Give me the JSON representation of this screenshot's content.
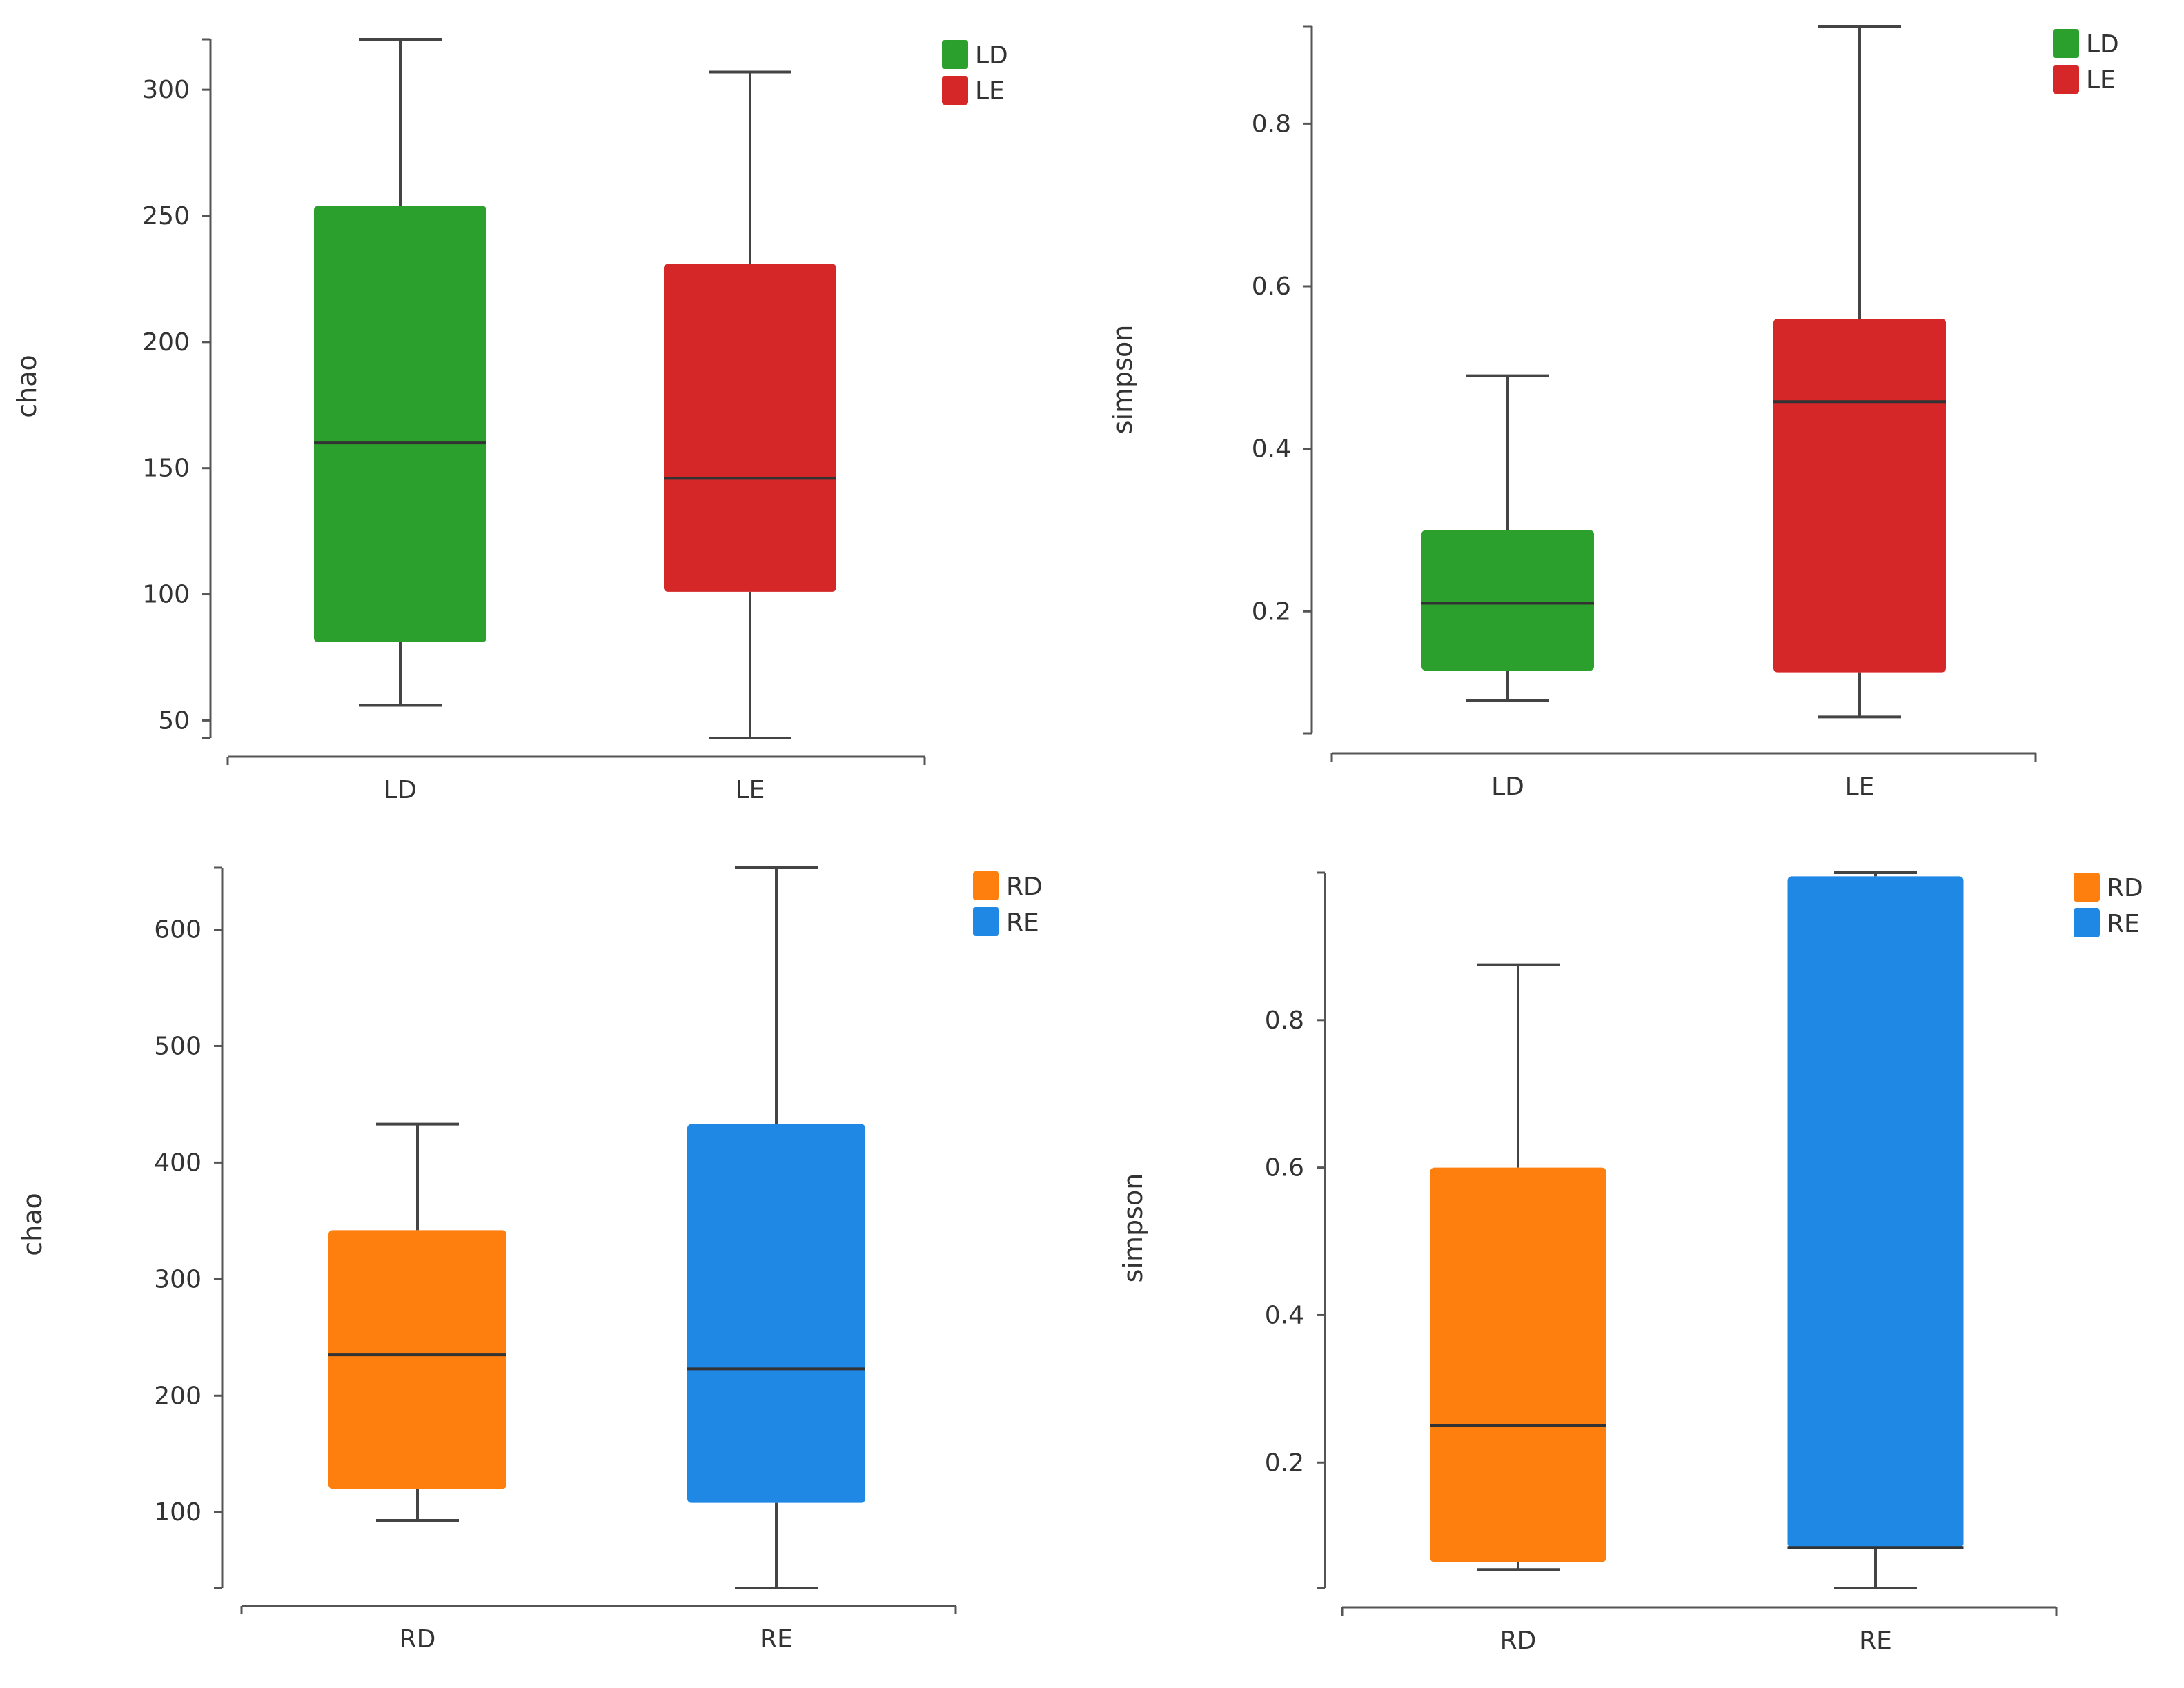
{
  "chart_data": [
    {
      "type": "box",
      "ylabel": "chao",
      "xlabel": "",
      "ylim": [
        43,
        320
      ],
      "yticks": [
        50,
        100,
        150,
        200,
        250,
        300
      ],
      "categories": [
        "LD",
        "LE"
      ],
      "legend": {
        "position": "top-right",
        "entries": [
          "LD",
          "LE"
        ]
      },
      "colors": [
        "#2ca02c",
        "#d62728"
      ],
      "boxes": [
        {
          "name": "LD",
          "min": 56,
          "q1": 81,
          "median": 160,
          "q3": 254,
          "max": 320
        },
        {
          "name": "LE",
          "min": 43,
          "q1": 101,
          "median": 146,
          "q3": 231,
          "max": 307
        }
      ]
    },
    {
      "type": "box",
      "ylabel": "simpson",
      "xlabel": "",
      "ylim": [
        0.05,
        0.92
      ],
      "yticks": [
        0.2,
        0.4,
        0.6,
        0.8
      ],
      "categories": [
        "LD",
        "LE"
      ],
      "legend": {
        "position": "top-right",
        "entries": [
          "LD",
          "LE"
        ]
      },
      "colors": [
        "#2ca02c",
        "#d62728"
      ],
      "boxes": [
        {
          "name": "LD",
          "min": 0.09,
          "q1": 0.127,
          "median": 0.21,
          "q3": 0.3,
          "max": 0.49
        },
        {
          "name": "LE",
          "min": 0.07,
          "q1": 0.125,
          "median": 0.458,
          "q3": 0.56,
          "max": 0.92
        }
      ]
    },
    {
      "type": "box",
      "ylabel": "chao",
      "xlabel": "",
      "ylim": [
        35,
        653
      ],
      "yticks": [
        100,
        200,
        300,
        400,
        500,
        600
      ],
      "categories": [
        "RD",
        "RE"
      ],
      "legend": {
        "position": "top-right",
        "entries": [
          "RD",
          "RE"
        ]
      },
      "colors": [
        "#ff7f0e",
        "#1f88e5"
      ],
      "boxes": [
        {
          "name": "RD",
          "min": 93,
          "q1": 120,
          "median": 235,
          "q3": 342,
          "max": 433
        },
        {
          "name": "RE",
          "min": 35,
          "q1": 108,
          "median": 223,
          "q3": 433,
          "max": 653
        }
      ]
    },
    {
      "type": "box",
      "ylabel": "simpson",
      "xlabel": "",
      "ylim": [
        0.03,
        1.0
      ],
      "yticks": [
        0.2,
        0.4,
        0.6,
        0.8
      ],
      "categories": [
        "RD",
        "RE"
      ],
      "legend": {
        "position": "top-right",
        "entries": [
          "RD",
          "RE"
        ]
      },
      "colors": [
        "#ff7f0e",
        "#1f88e5"
      ],
      "boxes": [
        {
          "name": "RD",
          "min": 0.055,
          "q1": 0.065,
          "median": 0.25,
          "q3": 0.6,
          "max": 0.875
        },
        {
          "name": "RE",
          "min": 0.03,
          "q1": 0.085,
          "median": 0.085,
          "q3": 0.995,
          "max": 1.0
        }
      ]
    }
  ]
}
